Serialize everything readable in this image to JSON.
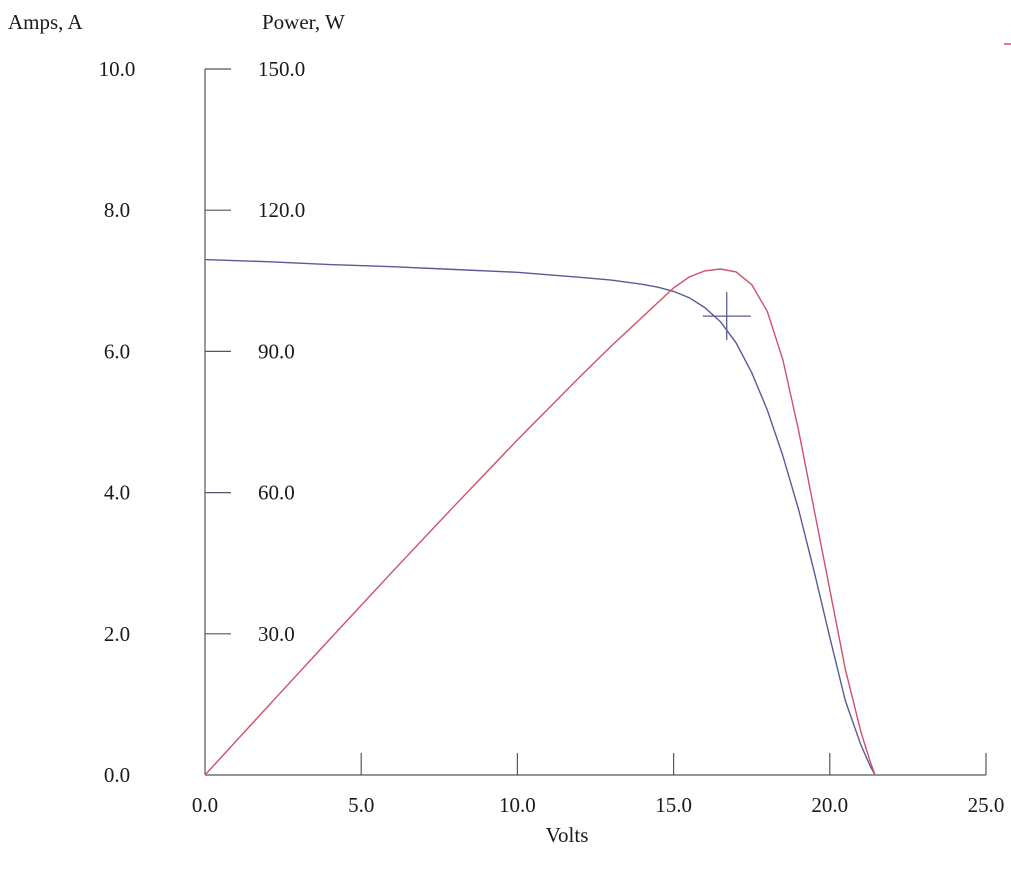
{
  "chart_data": {
    "type": "line",
    "title": "",
    "xlabel": "Volts",
    "ylabel_left": "Amps, A",
    "ylabel_right": "Power, W",
    "xlim": [
      0,
      25
    ],
    "ylim_left": [
      0,
      10
    ],
    "ylim_right": [
      0,
      150
    ],
    "x_ticks": [
      "0.0",
      "5.0",
      "10.0",
      "15.0",
      "20.0",
      "25.0"
    ],
    "y_ticks_left": [
      "0.0",
      "2.0",
      "4.0",
      "6.0",
      "8.0",
      "10.0"
    ],
    "y_ticks_right": [
      "30.0",
      "60.0",
      "90.0",
      "120.0",
      "150.0"
    ],
    "grid": false,
    "colors": {
      "current": "#5a5a9a",
      "power": "#d0506a",
      "axes": "#555566"
    },
    "series": [
      {
        "axis": "left",
        "color": "#5a5a9a",
        "x": [
          0,
          2,
          4,
          6,
          8,
          10,
          12,
          13,
          14,
          14.5,
          15,
          15.5,
          16,
          16.5,
          17,
          17.5,
          18,
          18.5,
          19,
          19.5,
          20,
          20.5,
          21,
          21.3,
          21.45
        ],
        "y": [
          7.3,
          7.27,
          7.23,
          7.2,
          7.16,
          7.12,
          7.05,
          7.01,
          6.95,
          6.91,
          6.85,
          6.76,
          6.62,
          6.42,
          6.12,
          5.7,
          5.17,
          4.52,
          3.76,
          2.88,
          1.95,
          1.05,
          0.42,
          0.12,
          0.0
        ]
      },
      {
        "axis": "right",
        "color": "#d0506a",
        "x": [
          0,
          2,
          4,
          6,
          8,
          10,
          12,
          13,
          14,
          15,
          15.5,
          16,
          16.5,
          17,
          17.5,
          18,
          18.5,
          19,
          19.5,
          20,
          20.5,
          21,
          21.3,
          21.45
        ],
        "y": [
          0,
          14.5,
          28.9,
          43.2,
          57.3,
          71.2,
          84.6,
          91.1,
          97.3,
          103.5,
          105.8,
          107.1,
          107.5,
          106.9,
          104.2,
          98.5,
          88.2,
          73.2,
          56.3,
          39.4,
          22.4,
          9.1,
          2.7,
          0.0
        ]
      }
    ],
    "marker": {
      "type": "cross",
      "x": 16.7,
      "y_left": 6.5
    },
    "extra_mark_color": "#d0506a"
  }
}
